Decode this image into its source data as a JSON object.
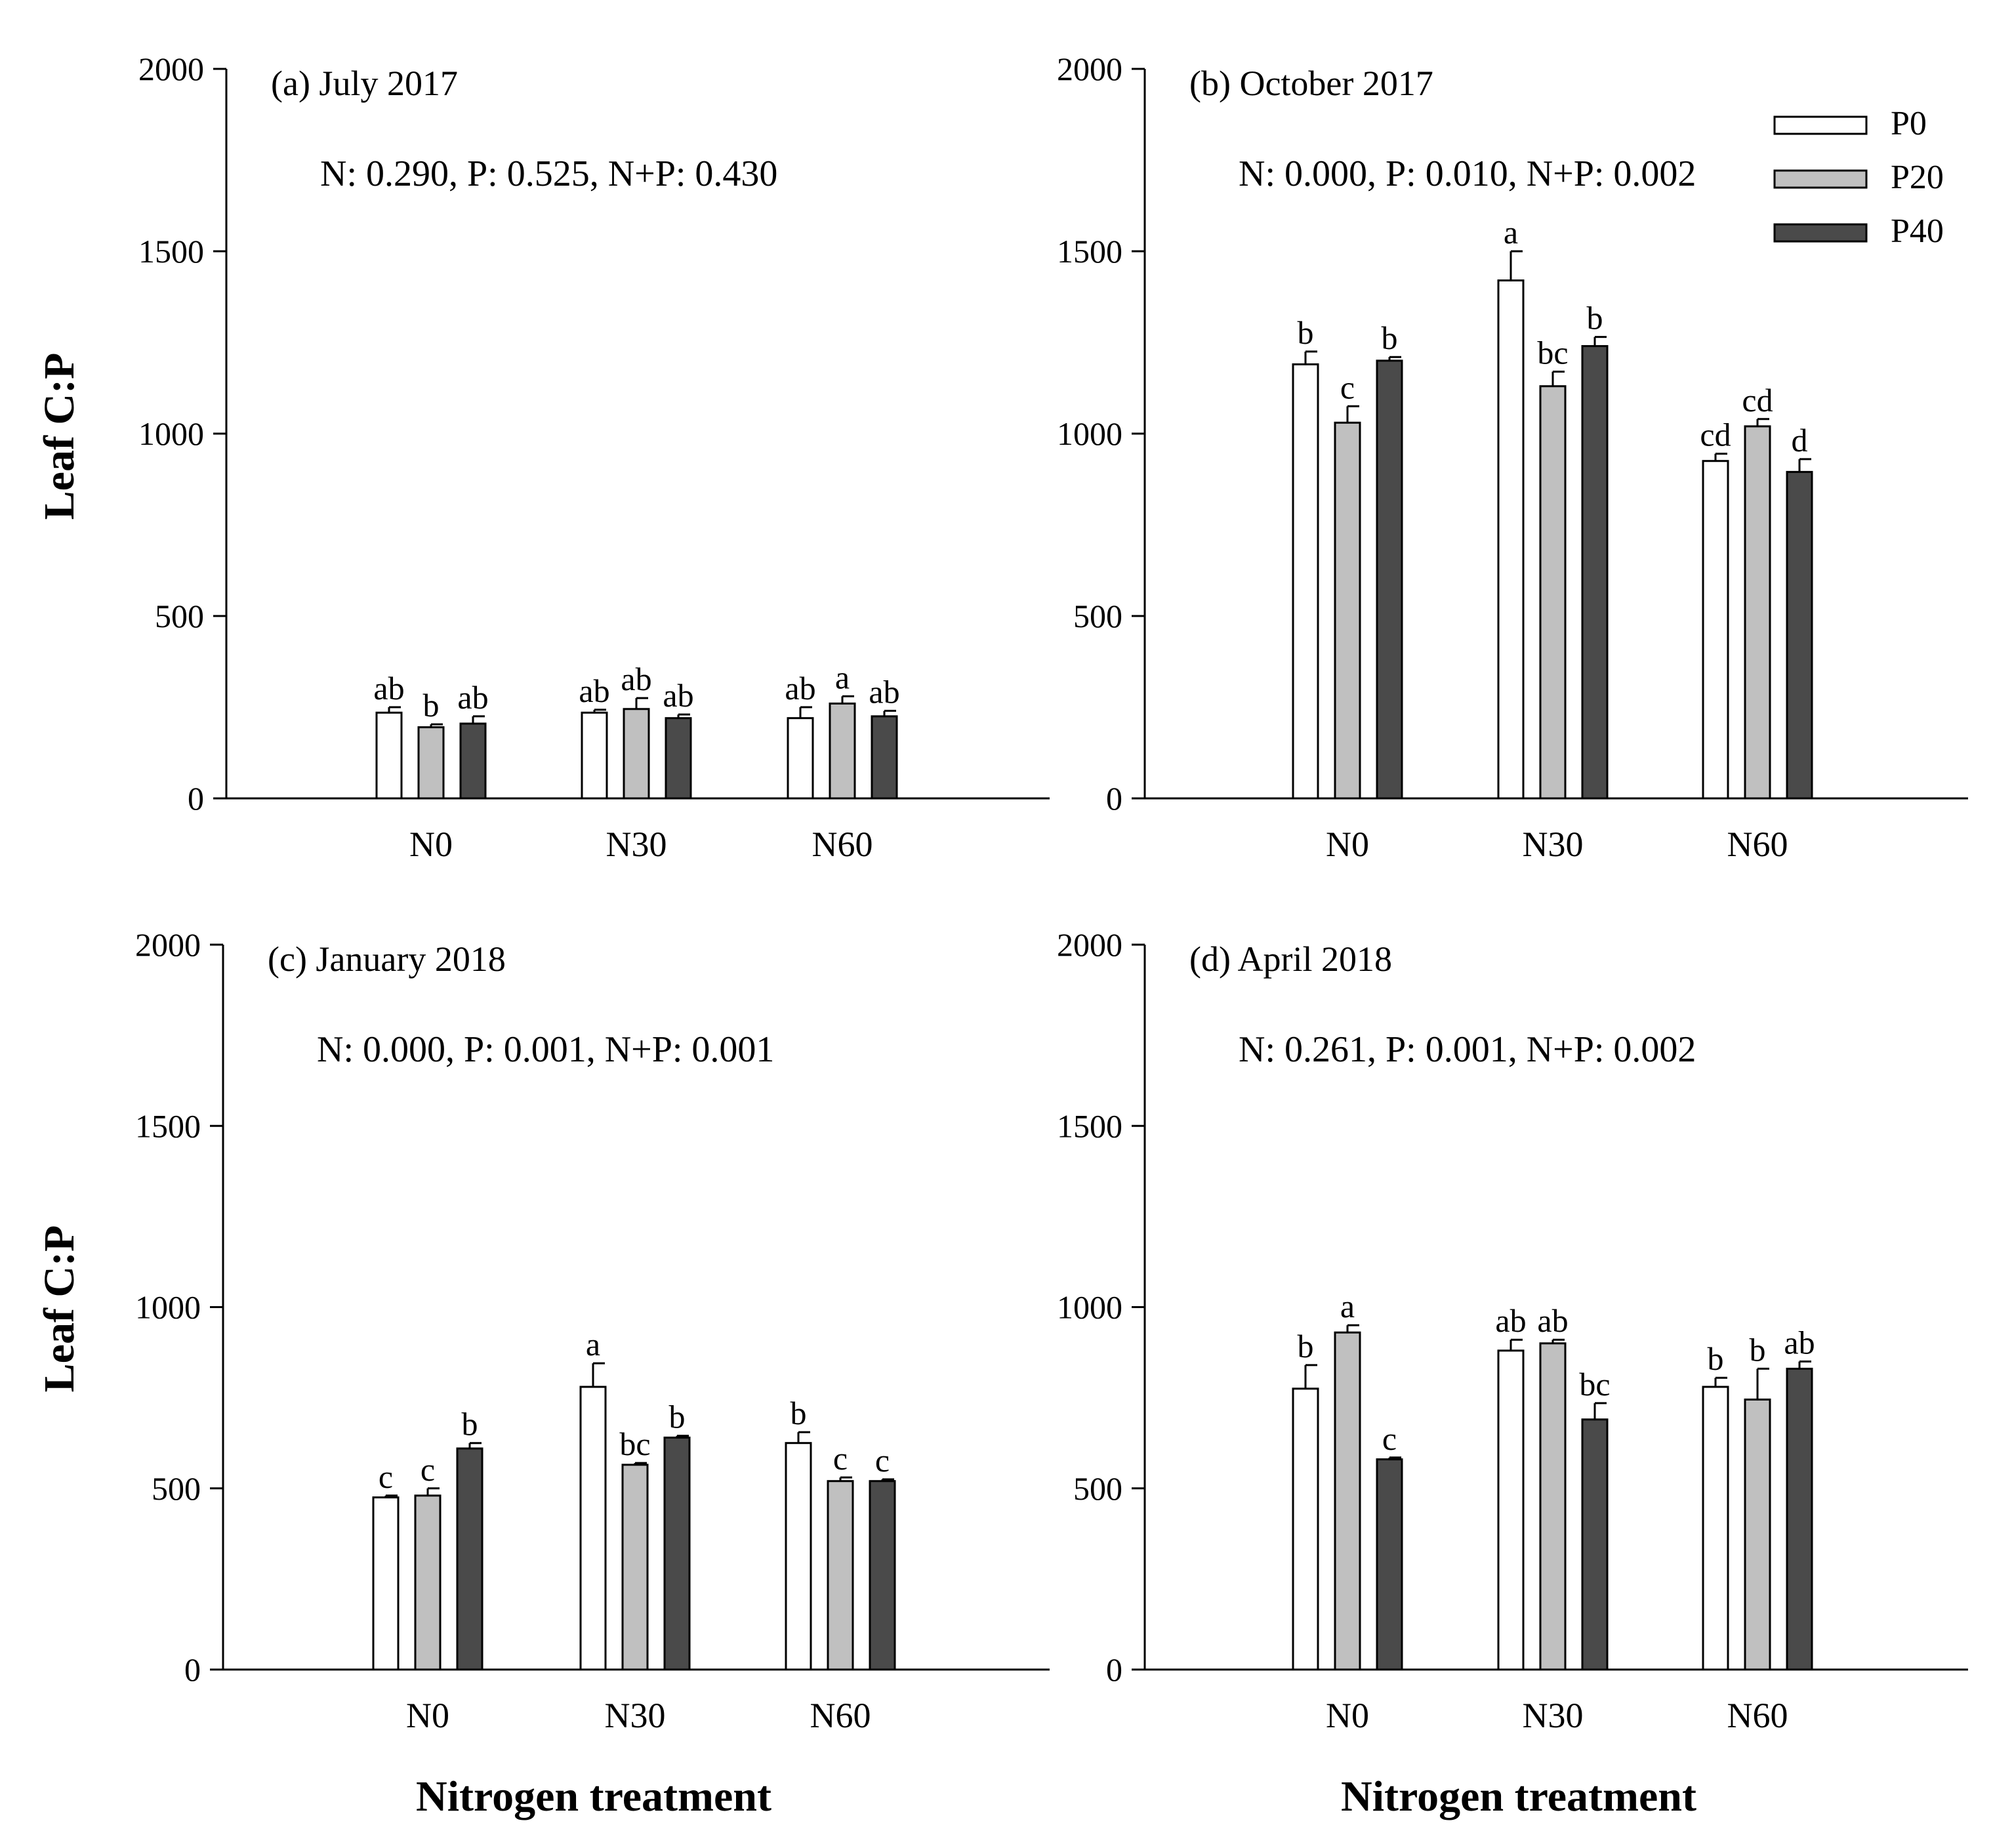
{
  "figure": {
    "ylabel": "Leaf C:P",
    "xlabel": "Nitrogen treatment"
  },
  "legend": [
    {
      "name": "P0",
      "color": "#ffffff"
    },
    {
      "name": "P20",
      "color": "#c0c0c0"
    },
    {
      "name": "P40",
      "color": "#4a4a4a"
    }
  ],
  "chart_data": [
    {
      "type": "bar",
      "title": "(a) July 2017",
      "annotation": "N: 0.290, P: 0.525, N+P: 0.430",
      "categories": [
        "N0",
        "N30",
        "N60"
      ],
      "ylabel": "Leaf C:P",
      "xlabel": "Nitrogen treatment",
      "ylim": [
        0,
        2000
      ],
      "yticks": [
        0,
        500,
        1000,
        1500,
        2000
      ],
      "series": [
        {
          "name": "P0",
          "values": [
            235,
            235,
            220
          ],
          "errors": [
            15,
            8,
            30
          ],
          "letters": [
            "ab",
            "ab",
            "ab"
          ]
        },
        {
          "name": "P20",
          "values": [
            195,
            245,
            260
          ],
          "errors": [
            8,
            30,
            20
          ],
          "letters": [
            "b",
            "ab",
            "a"
          ]
        },
        {
          "name": "P40",
          "values": [
            205,
            220,
            225
          ],
          "errors": [
            20,
            10,
            15
          ],
          "letters": [
            "ab",
            "ab",
            "ab"
          ]
        }
      ]
    },
    {
      "type": "bar",
      "title": "(b) October 2017",
      "annotation": "N: 0.000, P: 0.010, N+P: 0.002",
      "categories": [
        "N0",
        "N30",
        "N60"
      ],
      "ylabel": "Leaf C:P",
      "xlabel": "Nitrogen treatment",
      "ylim": [
        0,
        2000
      ],
      "yticks": [
        0,
        500,
        1000,
        1500,
        2000
      ],
      "series": [
        {
          "name": "P0",
          "values": [
            1190,
            1420,
            925
          ],
          "errors": [
            35,
            80,
            20
          ],
          "letters": [
            "b",
            "a",
            "cd"
          ]
        },
        {
          "name": "P20",
          "values": [
            1030,
            1130,
            1020
          ],
          "errors": [
            45,
            40,
            20
          ],
          "letters": [
            "c",
            "bc",
            "cd"
          ]
        },
        {
          "name": "P40",
          "values": [
            1200,
            1240,
            895
          ],
          "errors": [
            10,
            25,
            35
          ],
          "letters": [
            "b",
            "b",
            "d"
          ]
        }
      ]
    },
    {
      "type": "bar",
      "title": "(c) January 2018",
      "annotation": "N: 0.000, P: 0.001, N+P: 0.001",
      "categories": [
        "N0",
        "N30",
        "N60"
      ],
      "ylabel": "Leaf C:P",
      "xlabel": "Nitrogen treatment",
      "ylim": [
        0,
        2000
      ],
      "yticks": [
        0,
        500,
        1000,
        1500,
        2000
      ],
      "series": [
        {
          "name": "P0",
          "values": [
            475,
            780,
            625
          ],
          "errors": [
            5,
            65,
            30
          ],
          "letters": [
            "c",
            "a",
            "b"
          ]
        },
        {
          "name": "P20",
          "values": [
            480,
            565,
            520
          ],
          "errors": [
            20,
            5,
            10
          ],
          "letters": [
            "c",
            "bc",
            "c"
          ]
        },
        {
          "name": "P40",
          "values": [
            610,
            640,
            520
          ],
          "errors": [
            15,
            5,
            5
          ],
          "letters": [
            "b",
            "b",
            "c"
          ]
        }
      ]
    },
    {
      "type": "bar",
      "title": "(d) April 2018",
      "annotation": "N: 0.261, P: 0.001, N+P: 0.002",
      "categories": [
        "N0",
        "N30",
        "N60"
      ],
      "ylabel": "Leaf C:P",
      "xlabel": "Nitrogen treatment",
      "ylim": [
        0,
        2000
      ],
      "yticks": [
        0,
        500,
        1000,
        1500,
        2000
      ],
      "series": [
        {
          "name": "P0",
          "values": [
            775,
            880,
            780
          ],
          "errors": [
            65,
            30,
            25
          ],
          "letters": [
            "b",
            "ab",
            "b"
          ]
        },
        {
          "name": "P20",
          "values": [
            930,
            900,
            745
          ],
          "errors": [
            20,
            10,
            85
          ],
          "letters": [
            "a",
            "ab",
            "b"
          ]
        },
        {
          "name": "P40",
          "values": [
            580,
            690,
            830
          ],
          "errors": [
            5,
            45,
            20
          ],
          "letters": [
            "c",
            "bc",
            "ab"
          ]
        }
      ]
    }
  ]
}
